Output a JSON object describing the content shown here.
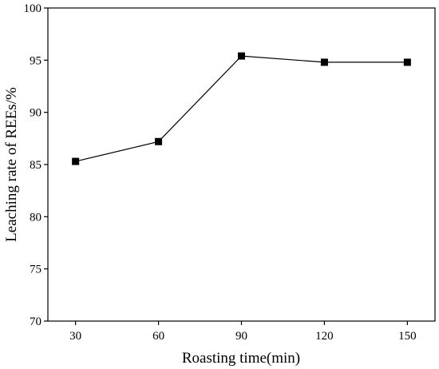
{
  "chart_data": {
    "type": "line",
    "title": "",
    "xlabel": "Roasting time(min)",
    "ylabel": "Leaching rate of REEs/%",
    "x": [
      30,
      60,
      90,
      120,
      150
    ],
    "xticks": [
      "30",
      "60",
      "90",
      "120",
      "150"
    ],
    "xlim": [
      20,
      160
    ],
    "ylim": [
      70,
      100
    ],
    "yticks": [
      "70",
      "75",
      "80",
      "85",
      "90",
      "95",
      "100"
    ],
    "series": [
      {
        "values": [
          85.3,
          87.2,
          95.4,
          94.8,
          94.8
        ],
        "marker": "square",
        "color": "#000000"
      }
    ],
    "grid": false,
    "legend": "none"
  }
}
